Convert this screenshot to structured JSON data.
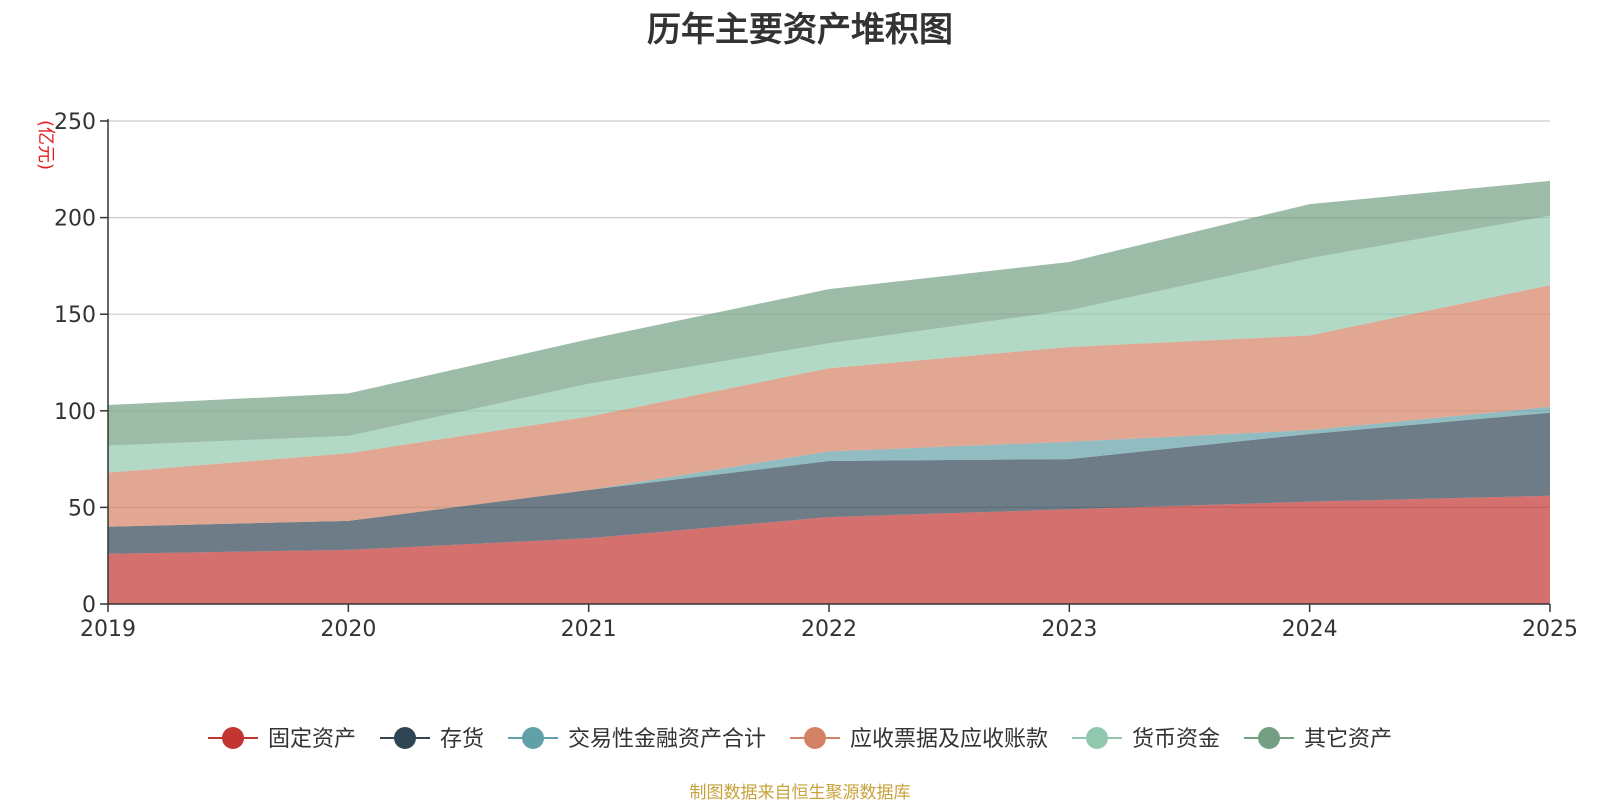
{
  "chart_data": {
    "type": "area",
    "stacked": true,
    "title": "历年主要资产堆积图",
    "ylabel": "(亿元)",
    "xlabel": "",
    "categories": [
      "2019",
      "2020",
      "2021",
      "2022",
      "2023",
      "2024",
      "2025"
    ],
    "ylim": [
      0,
      250
    ],
    "yticks": [
      0,
      50,
      100,
      150,
      200,
      250
    ],
    "grid": true,
    "legend_position": "bottom",
    "series": [
      {
        "name": "固定资产",
        "color": "#c23531",
        "values": [
          26,
          28,
          34,
          45,
          49,
          53,
          56
        ]
      },
      {
        "name": "存货",
        "color": "#2f4554",
        "values": [
          14,
          15,
          25,
          29,
          26,
          35,
          43
        ]
      },
      {
        "name": "交易性金融资产合计",
        "color": "#61a0a8",
        "values": [
          0,
          0,
          0,
          5,
          9,
          2,
          3
        ]
      },
      {
        "name": "应收票据及应收账款",
        "color": "#d48265",
        "values": [
          28,
          35,
          38,
          43,
          49,
          49,
          63
        ]
      },
      {
        "name": "货币资金",
        "color": "#91c7ae",
        "values": [
          14,
          9,
          17,
          13,
          19,
          40,
          36
        ]
      },
      {
        "name": "其它资产",
        "color": "#749f83",
        "values": [
          21,
          22,
          23,
          28,
          25,
          28,
          18
        ]
      }
    ]
  },
  "footer": {
    "source": "制图数据来自恒生聚源数据库"
  }
}
